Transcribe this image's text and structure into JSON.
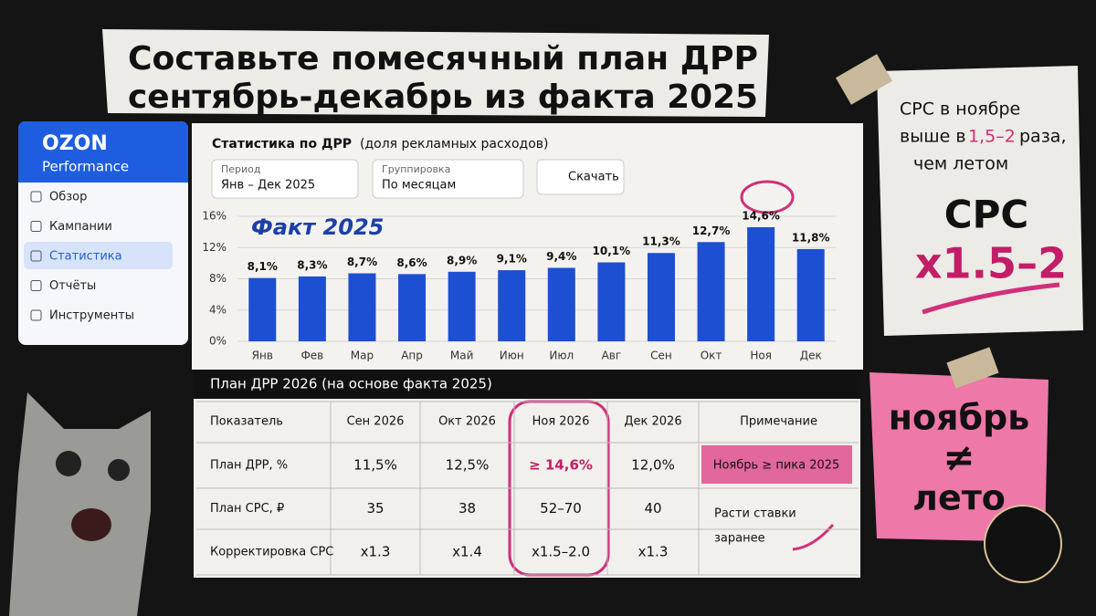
{
  "header": {
    "title_lines": [
      "Составьте помесячный план ДРР",
      "сентябрь-декабрь из факта 2025"
    ]
  },
  "sidebar": {
    "brand": "OZON",
    "sub": "Performance",
    "items": [
      "Обзор",
      "Кампании",
      "Статистика",
      "Отчёты",
      "Инструменты"
    ]
  },
  "controls": {
    "title": "Статистика по ДРР",
    "title_note": "(доля рекламных расходов)",
    "period_label": "Период",
    "period_value": "Янв – Дек 2025",
    "group_label": "Группировка",
    "group_value": "По месяцам",
    "download": "Скачать"
  },
  "chart_data": {
    "type": "bar",
    "annotation": "Факт 2025",
    "categories": [
      "Янв",
      "Фев",
      "Мар",
      "Апр",
      "Май",
      "Июн",
      "Июл",
      "Авг",
      "Сен",
      "Окт",
      "Ноя",
      "Дек"
    ],
    "values": [
      8.1,
      8.3,
      8.7,
      8.6,
      8.9,
      9.1,
      9.4,
      10.1,
      11.3,
      12.7,
      14.6,
      11.8
    ],
    "value_labels": [
      "8,1%",
      "8,3%",
      "8,7%",
      "8,6%",
      "8,9%",
      "9,1%",
      "9,4%",
      "10,1%",
      "11,3%",
      "12,7%",
      "14,6%",
      "11,8%"
    ],
    "color": "#1c4fd1",
    "ylim": [
      0,
      16
    ],
    "yticks": [
      {
        "value": 0,
        "label": "0%"
      },
      {
        "value": 4,
        "label": "4%"
      },
      {
        "value": 8,
        "label": "8%"
      },
      {
        "value": 12,
        "label": "12%"
      },
      {
        "value": 16,
        "label": "16%"
      }
    ],
    "grid": true
  },
  "table": {
    "title": "План ДРР 2026 (на основе факта 2025)",
    "header": [
      "Показатель",
      "Сен 2026",
      "Окт 2026",
      "Ноя 2026",
      "Дек 2026",
      "Примечание"
    ],
    "rows": [
      [
        "План ДРР, %",
        "11,5%",
        "12,5%",
        "≥ 14,6%",
        "12,0%"
      ],
      [
        "План CPC, ₽",
        "35",
        "38",
        "52–70",
        "40"
      ],
      [
        "Корректировка CPC",
        "x1.3",
        "x1.4",
        "x1.5–2.0",
        "x1.3"
      ]
    ],
    "notes": [
      "Ноябрь ≥ пика 2025",
      "Расти ставки",
      "заранее"
    ]
  },
  "note_right": {
    "lines": [
      "CPC в ноябре",
      "выше в",
      "1,5–2",
      "раза,",
      "чем летом"
    ],
    "big": [
      "CPC",
      "x1.5–2"
    ]
  },
  "note_pink": {
    "lines": [
      "ноябрь",
      "≠",
      "лето"
    ]
  }
}
